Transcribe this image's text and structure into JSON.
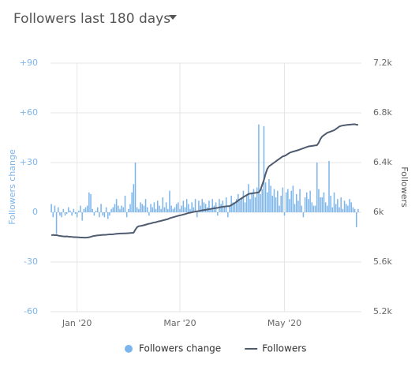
{
  "chart_data": {
    "type": "bar",
    "title": "Followers last 180 days",
    "y_label": "Followers change",
    "y2_label": "Followers",
    "categories": [
      null,
      null,
      null,
      null,
      null,
      null,
      null,
      null,
      null,
      null,
      null,
      null,
      null,
      null,
      null,
      "Jan '20",
      null,
      null,
      null,
      null,
      null,
      null,
      null,
      null,
      null,
      null,
      null,
      null,
      null,
      null,
      null,
      null,
      null,
      null,
      null,
      null,
      null,
      null,
      null,
      null,
      null,
      null,
      null,
      null,
      null,
      null,
      null,
      null,
      null,
      null,
      null,
      null,
      null,
      null,
      null,
      null,
      null,
      null,
      null,
      null,
      null,
      null,
      null,
      null,
      null,
      null,
      null,
      null,
      null,
      null,
      null,
      null,
      null,
      null,
      null,
      "Mar '20",
      null,
      null,
      null,
      null,
      null,
      null,
      null,
      null,
      null,
      null,
      null,
      null,
      null,
      null,
      null,
      null,
      null,
      null,
      null,
      null,
      null,
      null,
      null,
      null,
      null,
      null,
      null,
      null,
      null,
      null,
      null,
      null,
      null,
      null,
      null,
      null,
      null,
      null,
      null,
      null,
      null,
      null,
      null,
      null,
      null,
      null,
      null,
      null,
      null,
      null,
      null,
      null,
      null,
      null,
      null,
      null,
      null,
      null,
      null,
      null,
      "May '20",
      null,
      null,
      null,
      null,
      null,
      null,
      null,
      null,
      null,
      null,
      null,
      null,
      null,
      null,
      null,
      null,
      null,
      null,
      null,
      null,
      null,
      null,
      null,
      null,
      null,
      null,
      null,
      null,
      null,
      null,
      null,
      null,
      null,
      null,
      null,
      null,
      null,
      null,
      null,
      null,
      null,
      null,
      null
    ],
    "series": [
      {
        "name": "Followers change",
        "type": "bar",
        "color": "#7cb5ec",
        "values": [
          5,
          -3,
          4,
          -13,
          3,
          -2,
          -3,
          2,
          -2,
          -1,
          3,
          1,
          -2,
          2,
          -1,
          -3,
          1,
          4,
          -5,
          2,
          3,
          4,
          12,
          11,
          2,
          -2,
          1,
          3,
          -3,
          5,
          -2,
          -3,
          3,
          -4,
          -2,
          2,
          3,
          5,
          8,
          4,
          2,
          4,
          3,
          10,
          -3,
          2,
          5,
          12,
          17,
          30,
          3,
          2,
          6,
          5,
          4,
          8,
          3,
          -2,
          5,
          3,
          6,
          2,
          7,
          4,
          2,
          9,
          3,
          6,
          2,
          13,
          4,
          2,
          3,
          5,
          6,
          2,
          4,
          7,
          3,
          8,
          5,
          2,
          6,
          3,
          8,
          -3,
          7,
          4,
          8,
          6,
          5,
          3,
          7,
          2,
          8,
          4,
          6,
          -2,
          8,
          5,
          7,
          3,
          9,
          -3,
          4,
          10,
          6,
          5,
          8,
          11,
          7,
          9,
          13,
          6,
          10,
          17,
          8,
          12,
          14,
          9,
          15,
          53,
          11,
          14,
          52,
          18,
          12,
          20,
          16,
          10,
          14,
          9,
          13,
          4,
          10,
          15,
          -2,
          12,
          14,
          8,
          13,
          16,
          5,
          11,
          7,
          14,
          4,
          -3,
          9,
          12,
          8,
          13,
          6,
          4,
          4,
          30,
          14,
          9,
          9,
          12,
          6,
          4,
          31,
          10,
          3,
          12,
          5,
          8,
          3,
          9,
          2,
          7,
          5,
          4,
          8,
          6,
          3,
          2,
          -9,
          2
        ]
      },
      {
        "name": "Followers",
        "type": "line",
        "axis": "y2",
        "color": "#4f5b6e",
        "values": [
          5815,
          5818,
          5816,
          5817,
          5812,
          5810,
          5808,
          5806,
          5805,
          5806,
          5804,
          5803,
          5802,
          5800,
          5800,
          5799,
          5798,
          5797,
          5797,
          5796,
          5796,
          5797,
          5799,
          5803,
          5807,
          5810,
          5812,
          5814,
          5815,
          5817,
          5818,
          5818,
          5819,
          5821,
          5822,
          5822,
          5823,
          5825,
          5827,
          5828,
          5829,
          5829,
          5830,
          5830,
          5831,
          5832,
          5833,
          5834,
          5836,
          5860,
          5880,
          5888,
          5890,
          5893,
          5896,
          5900,
          5904,
          5908,
          5910,
          5915,
          5918,
          5920,
          5925,
          5928,
          5931,
          5935,
          5938,
          5942,
          5945,
          5952,
          5956,
          5960,
          5964,
          5968,
          5972,
          5975,
          5978,
          5982,
          5985,
          5990,
          5994,
          5997,
          6000,
          6003,
          6006,
          6008,
          6010,
          6013,
          6016,
          6018,
          6020,
          6022,
          6025,
          6027,
          6030,
          6032,
          6034,
          6036,
          6039,
          6042,
          6044,
          6046,
          6048,
          6049,
          6050,
          6058,
          6066,
          6074,
          6084,
          6094,
          6104,
          6112,
          6122,
          6130,
          6138,
          6147,
          6150,
          6152,
          6154,
          6156,
          6158,
          6160,
          6180,
          6220,
          6260,
          6310,
          6350,
          6370,
          6380,
          6390,
          6400,
          6410,
          6420,
          6430,
          6440,
          6450,
          6453,
          6460,
          6470,
          6478,
          6484,
          6488,
          6492,
          6496,
          6500,
          6505,
          6510,
          6515,
          6520,
          6525,
          6530,
          6532,
          6534,
          6536,
          6538,
          6540,
          6560,
          6590,
          6610,
          6620,
          6630,
          6640,
          6645,
          6650,
          6655,
          6660,
          6670,
          6680,
          6690,
          6695,
          6698,
          6700,
          6702,
          6704,
          6705,
          6706,
          6708,
          6708,
          6705,
          6703
        ]
      }
    ],
    "ylim": [
      -60,
      90
    ],
    "yticks": [
      -60,
      -30,
      0,
      {
        "value": 30,
        "label": "+30"
      },
      {
        "value": 60,
        "label": "+60"
      },
      {
        "value": 90,
        "label": "+90"
      }
    ],
    "y2lim": [
      5200,
      7200
    ],
    "y2ticks": [
      {
        "value": 5200,
        "label": "5.2k"
      },
      {
        "value": 5600,
        "label": "5.6k"
      },
      {
        "value": 6000,
        "label": "6k"
      },
      {
        "value": 6400,
        "label": "6.4k"
      },
      {
        "value": 6800,
        "label": "6.8k"
      },
      {
        "value": 7200,
        "label": "7.2k"
      }
    ],
    "grid": true
  }
}
